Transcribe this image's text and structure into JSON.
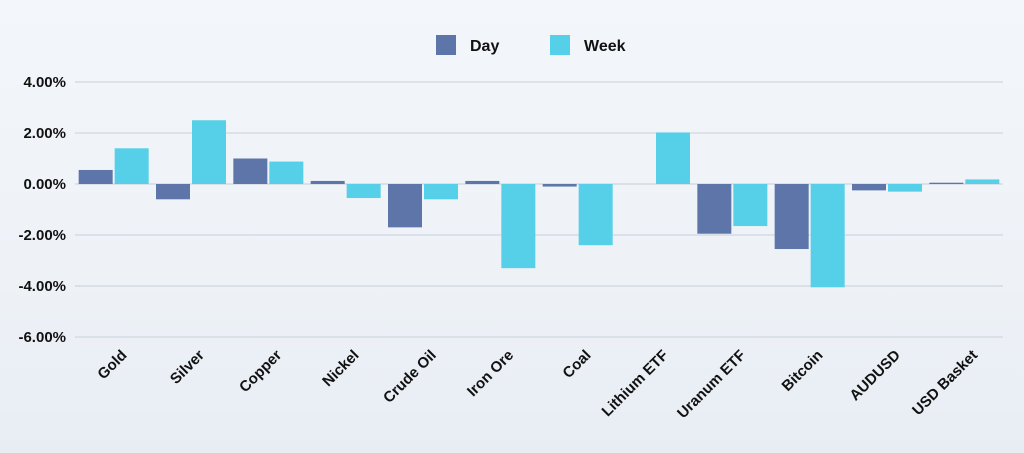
{
  "chart_data": {
    "type": "bar",
    "title": "",
    "xlabel": "",
    "ylabel": "",
    "categories": [
      "Gold",
      "Silver",
      "Copper",
      "Nickel",
      "Crude Oil",
      "Iron Ore",
      "Coal",
      "Lithium ETF",
      "Uranum ETF",
      "Bitcoin",
      "AUDUSD",
      "USD Basket"
    ],
    "series": [
      {
        "name": "Day",
        "color": "#5d75a8",
        "values": [
          0.55,
          -0.6,
          1.0,
          0.12,
          -1.7,
          0.12,
          -0.1,
          0.0,
          -1.95,
          -2.55,
          -0.25,
          0.05
        ]
      },
      {
        "name": "Week",
        "color": "#55d0e8",
        "values": [
          1.4,
          2.5,
          0.88,
          -0.55,
          -0.6,
          -3.3,
          -2.4,
          2.02,
          -1.65,
          -4.05,
          -0.3,
          0.18
        ]
      }
    ],
    "ylim": [
      -6,
      4
    ],
    "yticks": [
      "4.00%",
      "2.00%",
      "0.00%",
      "-2.00%",
      "-4.00%",
      "-6.00%"
    ],
    "ytick_values": [
      4,
      2,
      0,
      -2,
      -4,
      -6
    ],
    "grid": true,
    "legend_position": "top-center"
  }
}
